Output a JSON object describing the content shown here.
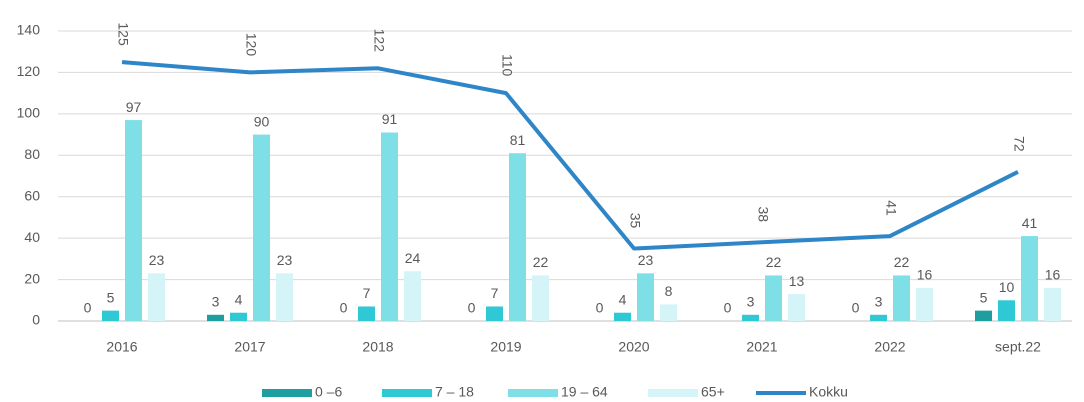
{
  "chart_data": {
    "type": "bar_line",
    "categories": [
      "2016",
      "2017",
      "2018",
      "2019",
      "2020",
      "2021",
      "2022",
      "sept.22"
    ],
    "series": [
      {
        "name": "0 –6",
        "type": "bar",
        "color": "#1f9ea0",
        "values": [
          0,
          3,
          0,
          0,
          0,
          0,
          0,
          5
        ]
      },
      {
        "name": "7 – 18",
        "type": "bar",
        "color": "#2ec9d4",
        "values": [
          5,
          4,
          7,
          7,
          4,
          3,
          3,
          10
        ]
      },
      {
        "name": "19 – 64",
        "type": "bar",
        "color": "#7fdfe6",
        "values": [
          97,
          90,
          91,
          81,
          23,
          22,
          22,
          41
        ]
      },
      {
        "name": "65+",
        "type": "bar",
        "color": "#d4f4f7",
        "values": [
          23,
          23,
          24,
          22,
          8,
          13,
          16,
          16
        ]
      },
      {
        "name": "Kokku",
        "type": "line",
        "color": "#2e86c8",
        "values": [
          125,
          120,
          122,
          110,
          35,
          38,
          41,
          72
        ]
      }
    ],
    "ylim": [
      0,
      140
    ],
    "yticks": [
      0,
      20,
      40,
      60,
      80,
      100,
      120,
      140
    ],
    "grid": true,
    "legend": "bottom"
  }
}
